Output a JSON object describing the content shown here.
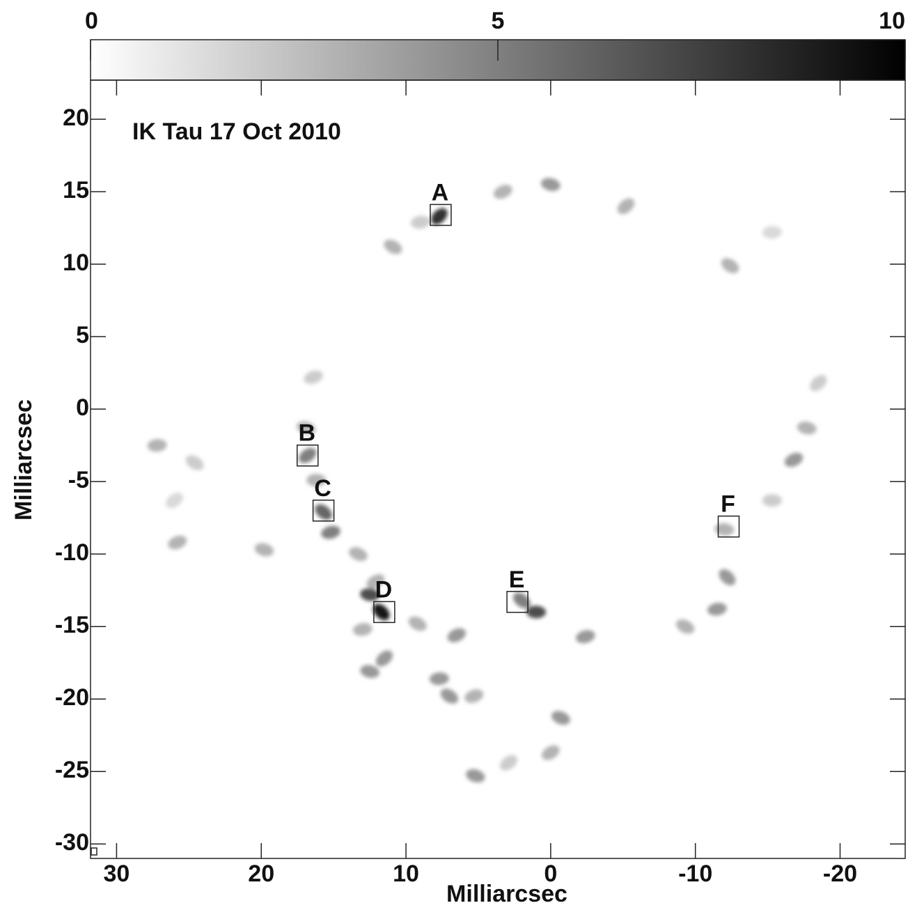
{
  "chart_data": {
    "type": "image",
    "title": "IK Tau 17 Oct 2010",
    "xlabel": "Milliarcsec",
    "ylabel": "Milliarcsec",
    "xlim": [
      31.8,
      -24.5
    ],
    "ylim": [
      -31,
      22.7
    ],
    "xticks": [
      30,
      20,
      10,
      0,
      -10,
      -20
    ],
    "yticks": [
      20,
      15,
      10,
      5,
      0,
      -5,
      -10,
      -15,
      -20,
      -25,
      -30
    ],
    "colorbar": {
      "lim": [
        0,
        10
      ],
      "ticks": [
        0,
        5,
        10
      ]
    },
    "spots": {
      "x": [
        7.7,
        9.0,
        10.9,
        3.3,
        0.0,
        -5.2,
        -15.3,
        -12.4,
        16.4,
        16.9,
        16.8,
        16.2,
        15.7,
        15.2,
        13.3,
        12.1,
        12.5,
        11.7,
        13.0,
        9.2,
        6.5,
        12.5,
        11.5,
        7.7,
        7.0,
        5.3,
        5.2,
        2.9,
        1.0,
        2.0,
        -2.4,
        -0.7,
        0.0,
        -12.0,
        -12.2,
        -11.5,
        -9.3,
        -16.8,
        -17.7,
        -18.5,
        27.2,
        24.6,
        25.8,
        19.8,
        26.0,
        -15.3
      ],
      "y": [
        13.3,
        12.9,
        11.2,
        15.0,
        15.5,
        14.0,
        12.2,
        9.9,
        2.2,
        -1.3,
        -3.2,
        -4.9,
        -7.1,
        -8.5,
        -10.0,
        -11.9,
        -12.8,
        -14.0,
        -15.2,
        -14.8,
        -15.6,
        -18.1,
        -17.2,
        -18.6,
        -19.8,
        -19.8,
        -25.3,
        -24.4,
        -14.0,
        -13.2,
        -15.7,
        -21.3,
        -23.7,
        -8.3,
        -11.6,
        -13.8,
        -15.0,
        -3.5,
        -1.3,
        1.8,
        -2.5,
        -3.7,
        -9.2,
        -9.7,
        -6.3,
        -6.3
      ],
      "intensity": [
        8,
        2,
        3,
        3,
        4,
        3,
        1.5,
        3,
        2,
        3,
        5,
        3,
        6,
        5,
        3,
        3,
        7,
        9,
        3,
        3,
        4,
        4,
        4,
        4,
        4,
        3,
        4,
        2,
        7,
        5,
        4,
        4,
        3,
        3,
        4,
        4,
        3,
        4,
        3,
        2,
        3,
        2,
        3,
        3,
        1.5,
        2
      ]
    },
    "boxes": {
      "labels": [
        "A",
        "B",
        "C",
        "D",
        "E",
        "F"
      ],
      "x": [
        7.6,
        16.8,
        15.7,
        11.5,
        2.3,
        -12.3
      ],
      "y": [
        13.4,
        -3.2,
        -7.0,
        -14.0,
        -13.3,
        -8.1
      ]
    }
  }
}
